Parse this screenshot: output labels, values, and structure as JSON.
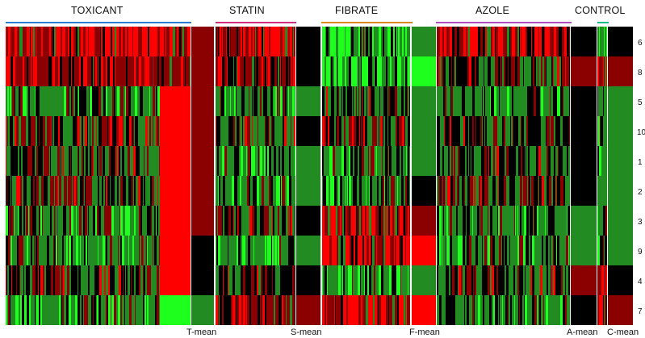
{
  "groups": [
    {
      "key": "toxicant",
      "label": "TOXICANT",
      "color": "#2b7bd0"
    },
    {
      "key": "statin",
      "label": "STATIN",
      "color": "#d0307a"
    },
    {
      "key": "fibrate",
      "label": "FIBRATE",
      "color": "#d9891e"
    },
    {
      "key": "azole",
      "label": "AZOLE",
      "color": "#b04ec0"
    },
    {
      "key": "control",
      "label": "CONTROL",
      "color": "#19b88a"
    }
  ],
  "mean_labels": [
    "T-mean",
    "S-mean",
    "F-mean",
    "A-mean",
    "C-mean"
  ],
  "row_labels": [
    "6",
    "8",
    "5",
    "10",
    "1",
    "2",
    "3",
    "9",
    "4",
    "7"
  ],
  "colors": {
    "red": "#ff0000",
    "dark_red": "#8b0000",
    "black": "#000000",
    "green": "#228b22",
    "bright_green": "#1eff1e"
  },
  "mean_columns": {
    "T-mean": [
      "dark_red",
      "dark_red",
      "dark_red",
      "dark_red",
      "dark_red",
      "dark_red",
      "dark_red",
      "black",
      "black",
      "green"
    ],
    "S-mean": [
      "black",
      "black",
      "green",
      "black",
      "green",
      "green",
      "black",
      "green",
      "black",
      "dark_red"
    ],
    "F-mean": [
      "green",
      "bright_green",
      "green",
      "green",
      "green",
      "black",
      "dark_red",
      "red",
      "green",
      "red"
    ],
    "A-mean": [
      "black",
      "dark_red",
      "black",
      "black",
      "black",
      "black",
      "green",
      "green",
      "dark_red",
      "black"
    ],
    "C-mean": [
      "black",
      "dark_red",
      "green",
      "green",
      "green",
      "green",
      "green",
      "green",
      "black",
      "dark_red"
    ]
  }
}
